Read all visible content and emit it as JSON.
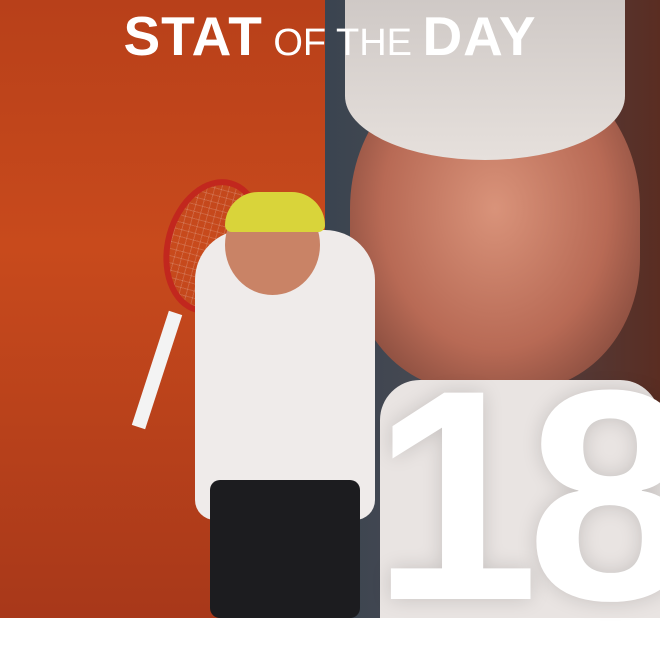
{
  "title": {
    "part1": "STAT",
    "part2": "OF THE",
    "part3": "DAY"
  },
  "stat": {
    "value": "18"
  },
  "colors": {
    "left_bg": "#c84a1c",
    "right_bg": "#3a4450",
    "text": "#ffffff"
  }
}
